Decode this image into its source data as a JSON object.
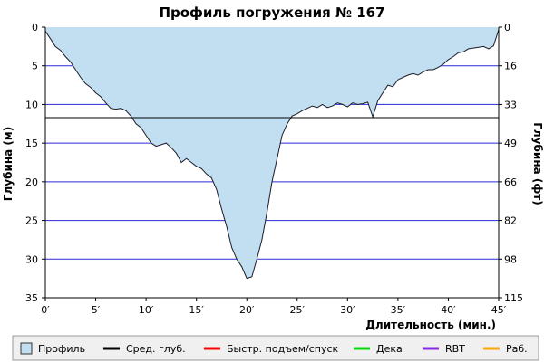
{
  "chart_data": {
    "type": "area",
    "title": "Профиль погружения № 167",
    "xlabel": "Длительность (мин.)",
    "ylabel_left": "Глубина (м)",
    "ylabel_right": "Глубина (фт)",
    "xlim": [
      0,
      45
    ],
    "ylim_left": [
      0,
      35
    ],
    "ylim_right": [
      0,
      115
    ],
    "inverted_y": true,
    "grid": true,
    "x_ticks": [
      0,
      5,
      10,
      15,
      20,
      25,
      30,
      35,
      40,
      45
    ],
    "x_tick_labels": [
      "0′",
      "5′",
      "10′",
      "15′",
      "20′",
      "25′",
      "30′",
      "35′",
      "40′",
      "45′"
    ],
    "y_left_ticks": [
      0,
      5,
      10,
      15,
      20,
      25,
      30,
      35
    ],
    "y_right_tick_labels": [
      "0",
      "16",
      "33",
      "49",
      "66",
      "82",
      "98",
      "115"
    ],
    "average_depth": 11.7,
    "series": [
      {
        "name": "Профиль",
        "color": "#c1dff0",
        "x": [
          0,
          0.5,
          1,
          1.5,
          2,
          2.5,
          3,
          3.5,
          4,
          4.5,
          5,
          5.5,
          6,
          6.5,
          7,
          7.5,
          8,
          8.5,
          9,
          9.5,
          10,
          10.5,
          11,
          11.5,
          12,
          12.5,
          13,
          13.5,
          14,
          14.5,
          15,
          15.5,
          16,
          16.5,
          17,
          17.5,
          18,
          18.5,
          19,
          19.5,
          20,
          20.5,
          21,
          21.5,
          22,
          22.5,
          23,
          23.5,
          24,
          24.5,
          25,
          25.5,
          26,
          26.5,
          27,
          27.5,
          28,
          28.5,
          29,
          29.5,
          30,
          30.5,
          31,
          31.5,
          32,
          32.5,
          33,
          33.5,
          34,
          34.5,
          35,
          35.5,
          36,
          36.5,
          37,
          37.5,
          38,
          38.5,
          39,
          39.5,
          40,
          40.5,
          41,
          41.5,
          42,
          42.5,
          43,
          43.5,
          44,
          44.5,
          45
        ],
        "values": [
          0.5,
          1.5,
          2.5,
          3,
          3.8,
          4.5,
          5.5,
          6.5,
          7.3,
          7.8,
          8.5,
          9,
          9.8,
          10.5,
          10.6,
          10.5,
          10.8,
          11.5,
          12.5,
          13,
          14,
          15,
          15.4,
          15.2,
          15,
          15.6,
          16.3,
          17.5,
          17,
          17.5,
          18,
          18.3,
          19,
          19.5,
          21,
          23.5,
          25.8,
          28.5,
          30,
          31,
          32.5,
          32.3,
          30,
          27.5,
          24,
          20,
          17,
          14,
          12.5,
          11.5,
          11.2,
          10.8,
          10.5,
          10.2,
          10.4,
          10,
          10.4,
          10.2,
          9.8,
          10,
          10.3,
          9.8,
          10,
          9.9,
          9.7,
          11.6,
          9.5,
          8.5,
          7.5,
          7.7,
          6.8,
          6.5,
          6.2,
          6,
          6.2,
          5.8,
          5.5,
          5.5,
          5.2,
          4.8,
          4.2,
          3.8,
          3.3,
          3.2,
          2.8,
          2.7,
          2.6,
          2.5,
          2.8,
          2.4,
          0.3
        ]
      }
    ],
    "legend_position": "bottom",
    "legend": [
      {
        "label": "Профиль",
        "color": "#c1dff0",
        "kind": "box"
      },
      {
        "label": "Сред. глуб.",
        "color": "#000000",
        "kind": "line"
      },
      {
        "label": "Быстр. подъем/спуск",
        "color": "#ff0000",
        "kind": "line"
      },
      {
        "label": "Дека",
        "color": "#00dd00",
        "kind": "line"
      },
      {
        "label": "RBT",
        "color": "#8a2be2",
        "kind": "line"
      },
      {
        "label": "Раб.",
        "color": "#ffa500",
        "kind": "line"
      }
    ],
    "colors": {
      "grid": "#2a2ad8",
      "profile_line": "#1a1a2a",
      "avg_line": "#000000",
      "legend_bg": "#f0f0f0"
    }
  }
}
